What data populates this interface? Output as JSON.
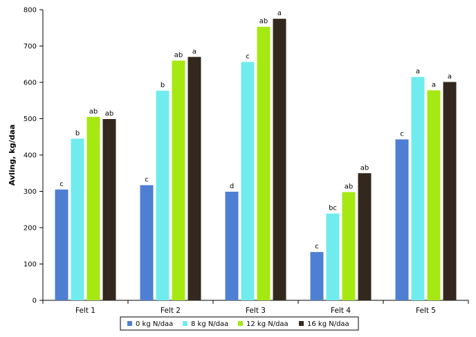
{
  "chart_data": {
    "type": "bar",
    "title": "",
    "xlabel": "",
    "ylabel": "Avling, kg/daa",
    "ylim": [
      0,
      800
    ],
    "yticks": [
      0,
      100,
      200,
      300,
      400,
      500,
      600,
      700,
      800
    ],
    "grid": false,
    "legend_position": "bottom",
    "categories": [
      "Felt 1",
      "Felt 2",
      "Felt 3",
      "Felt 4",
      "Felt 5"
    ],
    "series": [
      {
        "name": "0 kg N/daa",
        "color": "#4f7fd3",
        "values": [
          305,
          317,
          299,
          133,
          443
        ],
        "labels": [
          "c",
          "c",
          "d",
          "c",
          "c"
        ]
      },
      {
        "name": "8 kg N/daa",
        "color": "#70ecee",
        "values": [
          445,
          577,
          656,
          239,
          615
        ],
        "labels": [
          "b",
          "b",
          "c",
          "bc",
          "a"
        ]
      },
      {
        "name": "12 kg N/daa",
        "color": "#a6e812",
        "values": [
          505,
          660,
          753,
          298,
          578
        ],
        "labels": [
          "ab",
          "ab",
          "ab",
          "ab",
          "a"
        ]
      },
      {
        "name": "16  kg N/daa",
        "color": "#33281e",
        "values": [
          499,
          670,
          775,
          350,
          601
        ],
        "labels": [
          "ab",
          "a",
          "a",
          "ab",
          "a"
        ]
      }
    ]
  }
}
